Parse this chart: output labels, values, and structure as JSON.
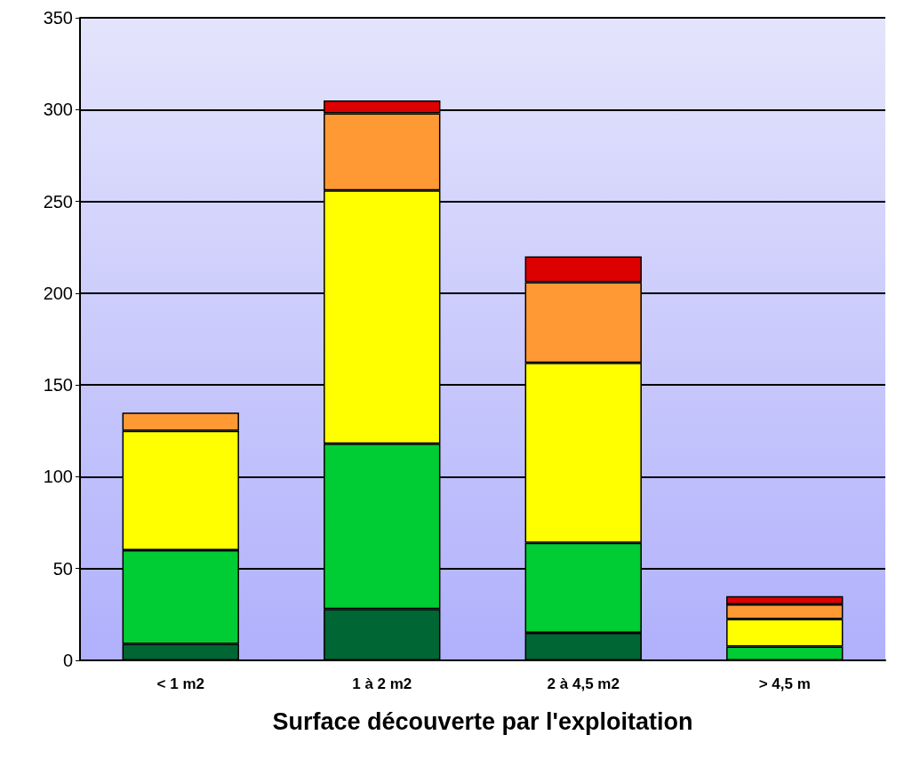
{
  "chart_data": {
    "type": "bar",
    "xlabel": "Surface découverte par l'exploitation",
    "categories": [
      "< 1 m2",
      "1 à 2 m2",
      "2 à 4,5 m2",
      "> 4,5 m"
    ],
    "stacked": true,
    "ylim": [
      0,
      350
    ],
    "yticks": [
      0,
      50,
      100,
      150,
      200,
      250,
      300,
      350
    ],
    "grid": "y",
    "series": [
      {
        "color": "#006633",
        "values": [
          9,
          28,
          15,
          null
        ]
      },
      {
        "color": "#00cc33",
        "values": [
          51,
          90,
          49,
          7.5
        ]
      },
      {
        "color": "#ffff00",
        "values": [
          65,
          138,
          98,
          15
        ]
      },
      {
        "color": "#ff9933",
        "values": [
          10,
          42,
          44,
          8
        ]
      },
      {
        "color": "#dd0000",
        "values": [
          null,
          7,
          14,
          4.5
        ]
      }
    ]
  }
}
